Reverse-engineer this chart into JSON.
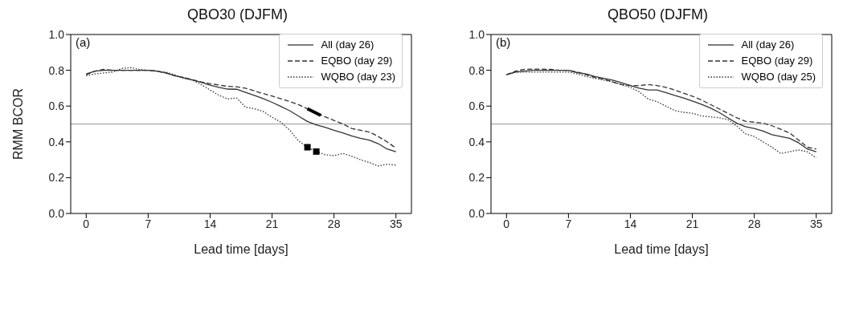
{
  "chart_data": [
    {
      "type": "line",
      "title": "QBO30 (DJFM)",
      "xlabel": "Lead time [days]",
      "ylabel": "RMM BCOR",
      "annotations": [
        "(a)"
      ],
      "legend": "top right",
      "x": [
        0,
        1,
        2,
        3,
        4,
        5,
        6,
        7,
        8,
        9,
        10,
        11,
        12,
        13,
        14,
        15,
        16,
        17,
        18,
        19,
        20,
        21,
        22,
        23,
        24,
        25,
        26,
        27,
        28,
        29,
        30,
        31,
        32,
        33,
        34,
        35
      ],
      "xlim": [
        -1.75,
        36.75
      ],
      "xticks": [
        0,
        7,
        14,
        21,
        28,
        35
      ],
      "ylim": [
        0,
        1
      ],
      "yticks": [
        {
          "value": 0,
          "label": "0.0"
        },
        {
          "value": 0.2,
          "label": "0.2"
        },
        {
          "value": 0.4,
          "label": "0.4"
        },
        {
          "value": 0.6,
          "label": "0.6"
        },
        {
          "value": 0.8,
          "label": "0.8"
        },
        {
          "value": 1,
          "label": "1.0"
        }
      ],
      "ref_lines": [
        {
          "axis": "y",
          "value": 0.5,
          "color": "#999999"
        }
      ],
      "series": [
        {
          "name": "All (day 26)",
          "color": "#333333",
          "line_style": "solid",
          "values": [
            0.78,
            0.795,
            0.8,
            0.8,
            0.8,
            0.8,
            0.8,
            0.8,
            0.795,
            0.785,
            0.77,
            0.758,
            0.746,
            0.733,
            0.717,
            0.705,
            0.695,
            0.694,
            0.677,
            0.66,
            0.642,
            0.621,
            0.598,
            0.574,
            0.544,
            0.514,
            0.495,
            0.482,
            0.465,
            0.45,
            0.433,
            0.42,
            0.41,
            0.39,
            0.36,
            0.345
          ]
        },
        {
          "name": "EQBO (day 29)",
          "color": "#333333",
          "line_style": "dashed",
          "values": [
            0.775,
            0.795,
            0.805,
            0.8,
            0.8,
            0.8,
            0.8,
            0.8,
            0.795,
            0.785,
            0.77,
            0.76,
            0.748,
            0.735,
            0.725,
            0.718,
            0.71,
            0.708,
            0.7,
            0.685,
            0.67,
            0.656,
            0.641,
            0.625,
            0.608,
            0.585,
            0.56,
            0.54,
            0.52,
            0.5,
            0.475,
            0.465,
            0.455,
            0.43,
            0.4,
            0.365
          ]
        },
        {
          "name": "WQBO (day 23)",
          "color": "#333333",
          "line_style": "dotted",
          "values": [
            0.77,
            0.78,
            0.785,
            0.79,
            0.81,
            0.815,
            0.805,
            0.8,
            0.795,
            0.79,
            0.775,
            0.755,
            0.745,
            0.72,
            0.69,
            0.66,
            0.64,
            0.645,
            0.594,
            0.585,
            0.57,
            0.538,
            0.51,
            0.465,
            0.405,
            0.37,
            0.346,
            0.328,
            0.323,
            0.335,
            0.32,
            0.3,
            0.285,
            0.265,
            0.275,
            0.27
          ]
        },
        {
          "type": "line",
          "color": "#000000",
          "line_style": "solid",
          "x": [
            25,
            26.5
          ],
          "values": [
            0.585,
            0.548
          ]
        },
        {
          "type": "scatter",
          "color": "#000000",
          "marker": "square",
          "x": [
            25,
            26
          ],
          "values": [
            0.37,
            0.346
          ]
        }
      ]
    },
    {
      "type": "line",
      "title": "QBO50 (DJFM)",
      "xlabel": "Lead time [days]",
      "annotations": [
        "(b)"
      ],
      "legend": "top right",
      "x": [
        0,
        1,
        2,
        3,
        4,
        5,
        6,
        7,
        8,
        9,
        10,
        11,
        12,
        13,
        14,
        15,
        16,
        17,
        18,
        19,
        20,
        21,
        22,
        23,
        24,
        25,
        26,
        27,
        28,
        29,
        30,
        31,
        32,
        33,
        34,
        35
      ],
      "xlim": [
        -1.75,
        36.75
      ],
      "xticks": [
        0,
        7,
        14,
        21,
        28,
        35
      ],
      "ylim": [
        0,
        1
      ],
      "yticks": [
        {
          "value": 0,
          "label": "0.0"
        },
        {
          "value": 0.2,
          "label": "0.2"
        },
        {
          "value": 0.4,
          "label": "0.4"
        },
        {
          "value": 0.6,
          "label": "0.6"
        },
        {
          "value": 0.8,
          "label": "0.8"
        },
        {
          "value": 1,
          "label": "1.0"
        }
      ],
      "ref_lines": [
        {
          "axis": "y",
          "value": 0.5,
          "color": "#999999"
        }
      ],
      "series": [
        {
          "name": "All (day 26)",
          "color": "#333333",
          "line_style": "solid",
          "values": [
            0.775,
            0.79,
            0.795,
            0.8,
            0.8,
            0.8,
            0.8,
            0.8,
            0.787,
            0.78,
            0.765,
            0.755,
            0.745,
            0.73,
            0.715,
            0.7,
            0.69,
            0.69,
            0.675,
            0.66,
            0.645,
            0.628,
            0.61,
            0.59,
            0.565,
            0.535,
            0.505,
            0.485,
            0.475,
            0.46,
            0.44,
            0.43,
            0.42,
            0.395,
            0.36,
            0.345
          ]
        },
        {
          "name": "EQBO (day 29)",
          "color": "#333333",
          "line_style": "dashed",
          "values": [
            0.775,
            0.795,
            0.805,
            0.807,
            0.807,
            0.805,
            0.8,
            0.8,
            0.79,
            0.775,
            0.76,
            0.75,
            0.735,
            0.72,
            0.715,
            0.715,
            0.72,
            0.715,
            0.705,
            0.69,
            0.672,
            0.655,
            0.635,
            0.61,
            0.585,
            0.56,
            0.535,
            0.515,
            0.51,
            0.505,
            0.49,
            0.47,
            0.45,
            0.41,
            0.37,
            0.36
          ]
        },
        {
          "name": "WQBO (day 25)",
          "color": "#333333",
          "line_style": "dotted",
          "values": [
            0.775,
            0.79,
            0.79,
            0.79,
            0.79,
            0.79,
            0.79,
            0.79,
            0.78,
            0.765,
            0.755,
            0.745,
            0.735,
            0.72,
            0.705,
            0.68,
            0.64,
            0.625,
            0.6,
            0.575,
            0.565,
            0.56,
            0.545,
            0.54,
            0.535,
            0.525,
            0.49,
            0.445,
            0.43,
            0.4,
            0.37,
            0.335,
            0.345,
            0.355,
            0.345,
            0.31
          ]
        }
      ]
    }
  ]
}
